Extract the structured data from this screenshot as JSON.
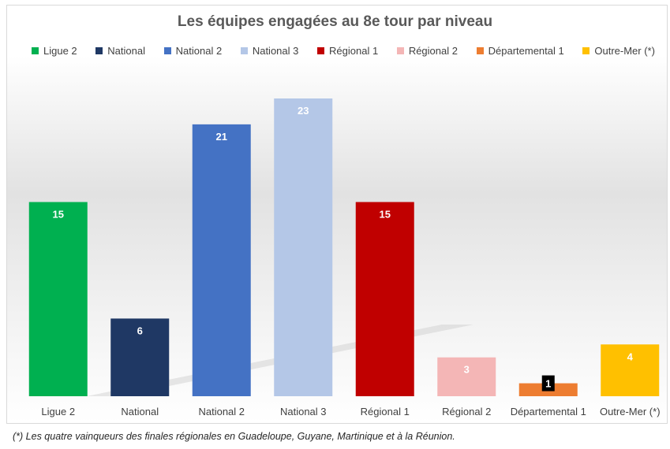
{
  "chart_data": {
    "type": "bar",
    "title": "Les équipes engagées au 8e tour par niveau",
    "categories": [
      "Ligue 2",
      "National",
      "National 2",
      "National 3",
      "Régional 1",
      "Régional 2",
      "Départemental 1",
      "Outre-Mer (*)"
    ],
    "values": [
      15,
      6,
      21,
      23,
      15,
      3,
      1,
      4
    ],
    "colors": [
      "#00b050",
      "#1f3864",
      "#4472c4",
      "#b4c7e7",
      "#c00000",
      "#f4b6b6",
      "#ed7d31",
      "#ffc000"
    ],
    "legend": [
      "Ligue 2",
      "National",
      "National 2",
      "National 3",
      "Régional 1",
      "Régional 2",
      "Départemental 1",
      "Outre-Mer (*)"
    ],
    "legend_position": "top",
    "ylim": [
      0,
      24
    ],
    "grid": false,
    "xlabel": "",
    "ylabel": ""
  },
  "footnote": "(*) Les quatre vainqueurs des finales régionales en Guadeloupe, Guyane, Martinique et à la Réunion."
}
